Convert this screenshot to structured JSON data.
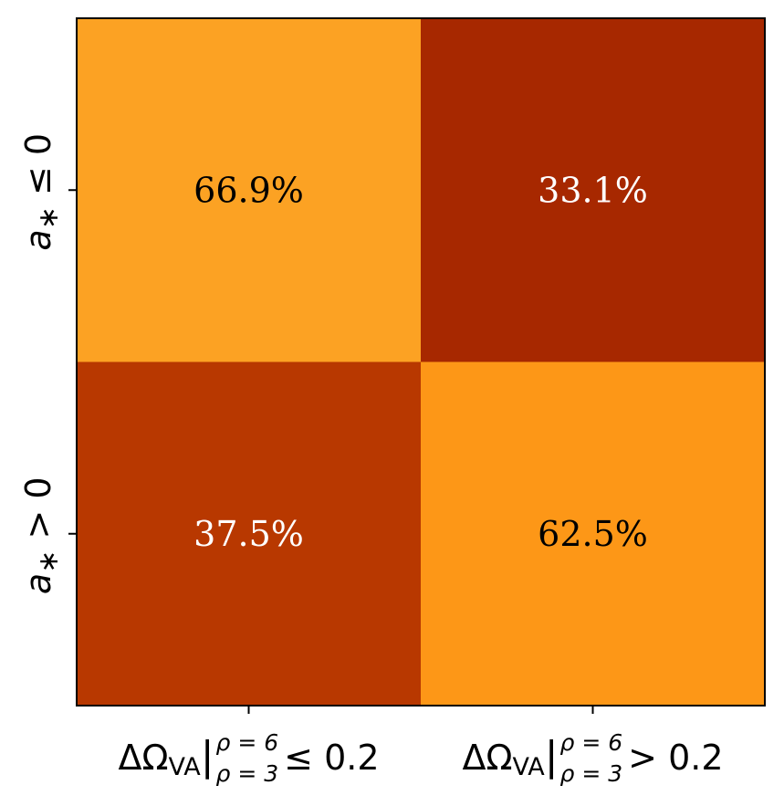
{
  "chart_data": {
    "type": "heatmap",
    "rows": [
      {
        "label_main": "a",
        "label_sub": "∗",
        "label_rel": "≤ 0"
      },
      {
        "label_main": "a",
        "label_sub": "∗",
        "label_rel": "> 0"
      }
    ],
    "cols": [
      {
        "label_main": "ΔΩ",
        "label_sub": "VA",
        "label_lower": "ρ = 3",
        "label_upper": "ρ = 6",
        "label_rel": "≤ 0.2"
      },
      {
        "label_main": "ΔΩ",
        "label_sub": "VA",
        "label_lower": "ρ = 3",
        "label_upper": "ρ = 6",
        "label_rel": "> 0.2"
      }
    ],
    "values": [
      [
        66.9,
        33.1
      ],
      [
        37.5,
        62.5
      ]
    ],
    "cell_labels": [
      [
        "66.9%",
        "33.1%"
      ],
      [
        "37.5%",
        "62.5%"
      ]
    ],
    "cell_colors": [
      [
        "#fca223",
        "#a72800"
      ],
      [
        "#b83800",
        "#fd9717"
      ]
    ],
    "cell_text_colors": [
      [
        "#000000",
        "#ffffff"
      ],
      [
        "#ffffff",
        "#000000"
      ]
    ],
    "colormap": "YlOrBr-like (orange to dark red)",
    "grid": false,
    "legend": "none"
  }
}
